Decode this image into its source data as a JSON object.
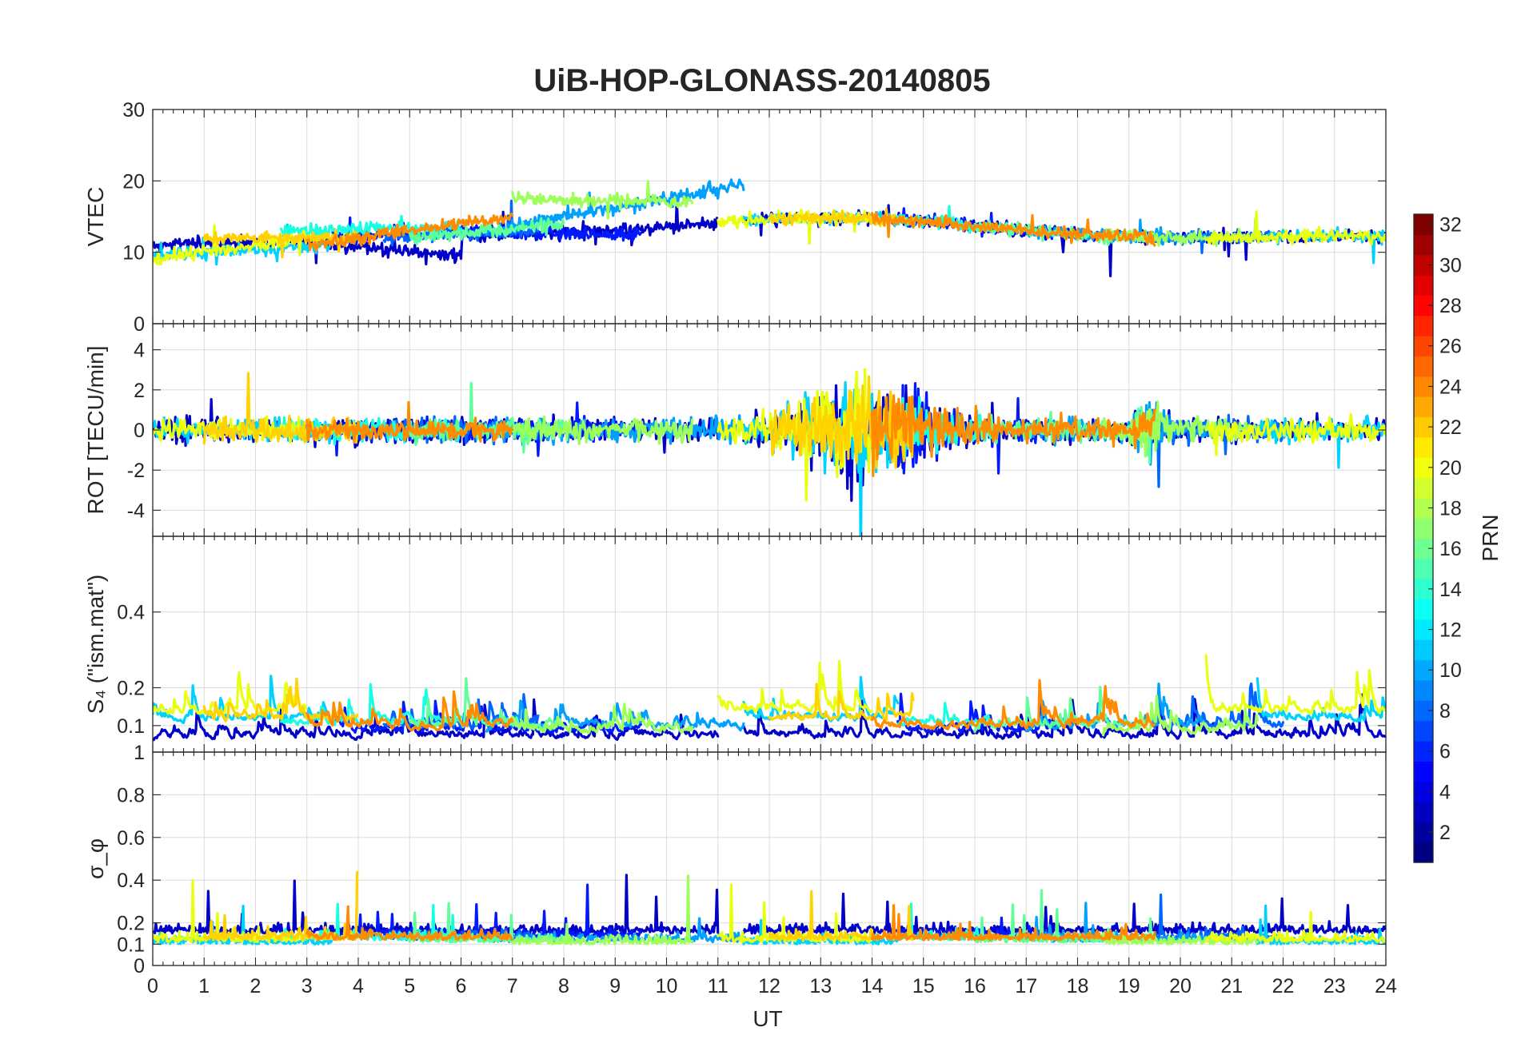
{
  "chart_data": {
    "type": "line",
    "title": "UiB-HOP-GLONASS-20140805",
    "xlabel": "UT",
    "xlim": [
      0,
      24
    ],
    "x_ticks": [
      "0",
      "1",
      "2",
      "3",
      "4",
      "5",
      "6",
      "7",
      "8",
      "9",
      "10",
      "11",
      "12",
      "13",
      "14",
      "15",
      "16",
      "17",
      "18",
      "19",
      "20",
      "21",
      "22",
      "23",
      "24"
    ],
    "colorbar": {
      "label": "PRN",
      "range": [
        1,
        32
      ],
      "colormap": "jet",
      "ticks": [
        "2",
        "4",
        "6",
        "8",
        "10",
        "12",
        "14",
        "16",
        "18",
        "20",
        "22",
        "24",
        "26",
        "28",
        "30",
        "32"
      ]
    },
    "panels": [
      {
        "id": "vtec",
        "ylabel": "VTEC",
        "ylim": [
          0,
          30
        ],
        "y_ticks": [
          {
            "value": 0,
            "label": "0"
          },
          {
            "value": 10,
            "label": "10"
          },
          {
            "value": 20,
            "label": "20"
          },
          {
            "value": 30,
            "label": "30"
          }
        ]
      },
      {
        "id": "rot",
        "ylabel": "ROT [TECU/min]",
        "ylim": [
          -5.3,
          5.3
        ],
        "y_ticks": [
          {
            "value": -4,
            "label": "-4"
          },
          {
            "value": -2,
            "label": "-2"
          },
          {
            "value": 0,
            "label": "0"
          },
          {
            "value": 2,
            "label": "2"
          },
          {
            "value": 4,
            "label": "4"
          }
        ]
      },
      {
        "id": "s4",
        "ylabel": "S₄ (\"ism.mat\")",
        "ylim": [
          0.03,
          0.6
        ],
        "y_ticks": [
          {
            "value": 0.1,
            "label": "0.1"
          },
          {
            "value": 0.2,
            "label": "0.2"
          },
          {
            "value": 0.4,
            "label": "0.4"
          }
        ]
      },
      {
        "id": "sigma",
        "ylabel": "σ_φ",
        "ylim": [
          0,
          1
        ],
        "y_ticks": [
          {
            "value": 0,
            "label": "0"
          },
          {
            "value": 0.1,
            "label": "0.1"
          },
          {
            "value": 0.2,
            "label": "0.2"
          },
          {
            "value": 0.4,
            "label": "0.4"
          },
          {
            "value": 0.6,
            "label": "0.6"
          },
          {
            "value": 0.8,
            "label": "0.8"
          },
          {
            "value": 1,
            "label": "1"
          }
        ]
      }
    ],
    "series": [
      {
        "prn": 3,
        "color": "#0000c8",
        "segments": [
          [
            0.0,
            11.0
          ],
          [
            11.5,
            24.0
          ]
        ],
        "vtec_base": [
          [
            0,
            11
          ],
          [
            3,
            11.5
          ],
          [
            6,
            9.5
          ]
        ],
        "s4_base": 0.055,
        "sigma_base": 0.15
      },
      {
        "prn": 5,
        "color": "#0019ff",
        "segments": [
          [
            3.5,
            9.5
          ],
          [
            14.5,
            17.5
          ]
        ],
        "vtec_base": [
          [
            3.5,
            12
          ],
          [
            6,
            13
          ],
          [
            9.5,
            12.5
          ]
        ],
        "s4_base": 0.07,
        "sigma_base": 0.13
      },
      {
        "prn": 7,
        "color": "#0066ff",
        "segments": [
          [
            4.5,
            7.5
          ],
          [
            19.5,
            22.0
          ]
        ],
        "vtec_base": [
          [
            4.5,
            12
          ],
          [
            7.5,
            13
          ]
        ],
        "s4_base": 0.08,
        "sigma_base": 0.12
      },
      {
        "prn": 9,
        "color": "#00a0ff",
        "segments": [
          [
            6.5,
            11.5
          ],
          [
            17.0,
            20.5
          ]
        ],
        "vtec_base": [
          [
            6.5,
            13
          ],
          [
            11.5,
            19.5
          ]
        ],
        "s4_base": 0.08,
        "sigma_base": 0.11
      },
      {
        "prn": 11,
        "color": "#00d2ff",
        "segments": [
          [
            0.0,
            3.5
          ],
          [
            11.5,
            14.5
          ],
          [
            21.5,
            24.0
          ]
        ],
        "vtec_base": [
          [
            0,
            9.5
          ],
          [
            3.5,
            11
          ]
        ],
        "s4_base": 0.1,
        "sigma_base": 0.1
      },
      {
        "prn": 13,
        "color": "#16ffe2",
        "segments": [
          [
            2.5,
            6.0
          ],
          [
            14.5,
            16.5
          ]
        ],
        "vtec_base": [
          [
            2.5,
            13
          ],
          [
            6,
            13.5
          ]
        ],
        "s4_base": 0.09,
        "sigma_base": 0.12
      },
      {
        "prn": 15,
        "color": "#5fff99",
        "segments": [
          [
            5.0,
            8.0
          ],
          [
            16.0,
            19.5
          ]
        ],
        "vtec_base": [
          [
            5,
            12
          ],
          [
            8,
            14
          ]
        ],
        "s4_base": 0.08,
        "sigma_base": 0.11
      },
      {
        "prn": 17,
        "color": "#9eff5a",
        "segments": [
          [
            7.0,
            10.5
          ],
          [
            18.5,
            21.5
          ]
        ],
        "vtec_base": [
          [
            7,
            17.5
          ],
          [
            10.5,
            17
          ]
        ],
        "s4_base": 0.07,
        "sigma_base": 0.1
      },
      {
        "prn": 19,
        "color": "#e8ff10",
        "segments": [
          [
            0.0,
            3.0
          ],
          [
            11.0,
            14.0
          ],
          [
            20.5,
            24.0
          ]
        ],
        "vtec_base": [
          [
            0,
            9
          ],
          [
            3,
            12
          ]
        ],
        "s4_base": 0.12,
        "sigma_base": 0.11
      },
      {
        "prn": 21,
        "color": "#ffd200",
        "segments": [
          [
            1.0,
            4.0
          ],
          [
            12.0,
            14.8
          ]
        ],
        "vtec_base": [
          [
            1,
            12
          ],
          [
            4,
            12
          ]
        ],
        "s4_base": 0.1,
        "sigma_base": 0.12
      },
      {
        "prn": 23,
        "color": "#ff8c00",
        "segments": [
          [
            3.0,
            7.0
          ],
          [
            14.0,
            19.5
          ]
        ],
        "vtec_base": [
          [
            3,
            11
          ],
          [
            7,
            15
          ]
        ],
        "s4_base": 0.08,
        "sigma_base": 0.12
      }
    ]
  }
}
